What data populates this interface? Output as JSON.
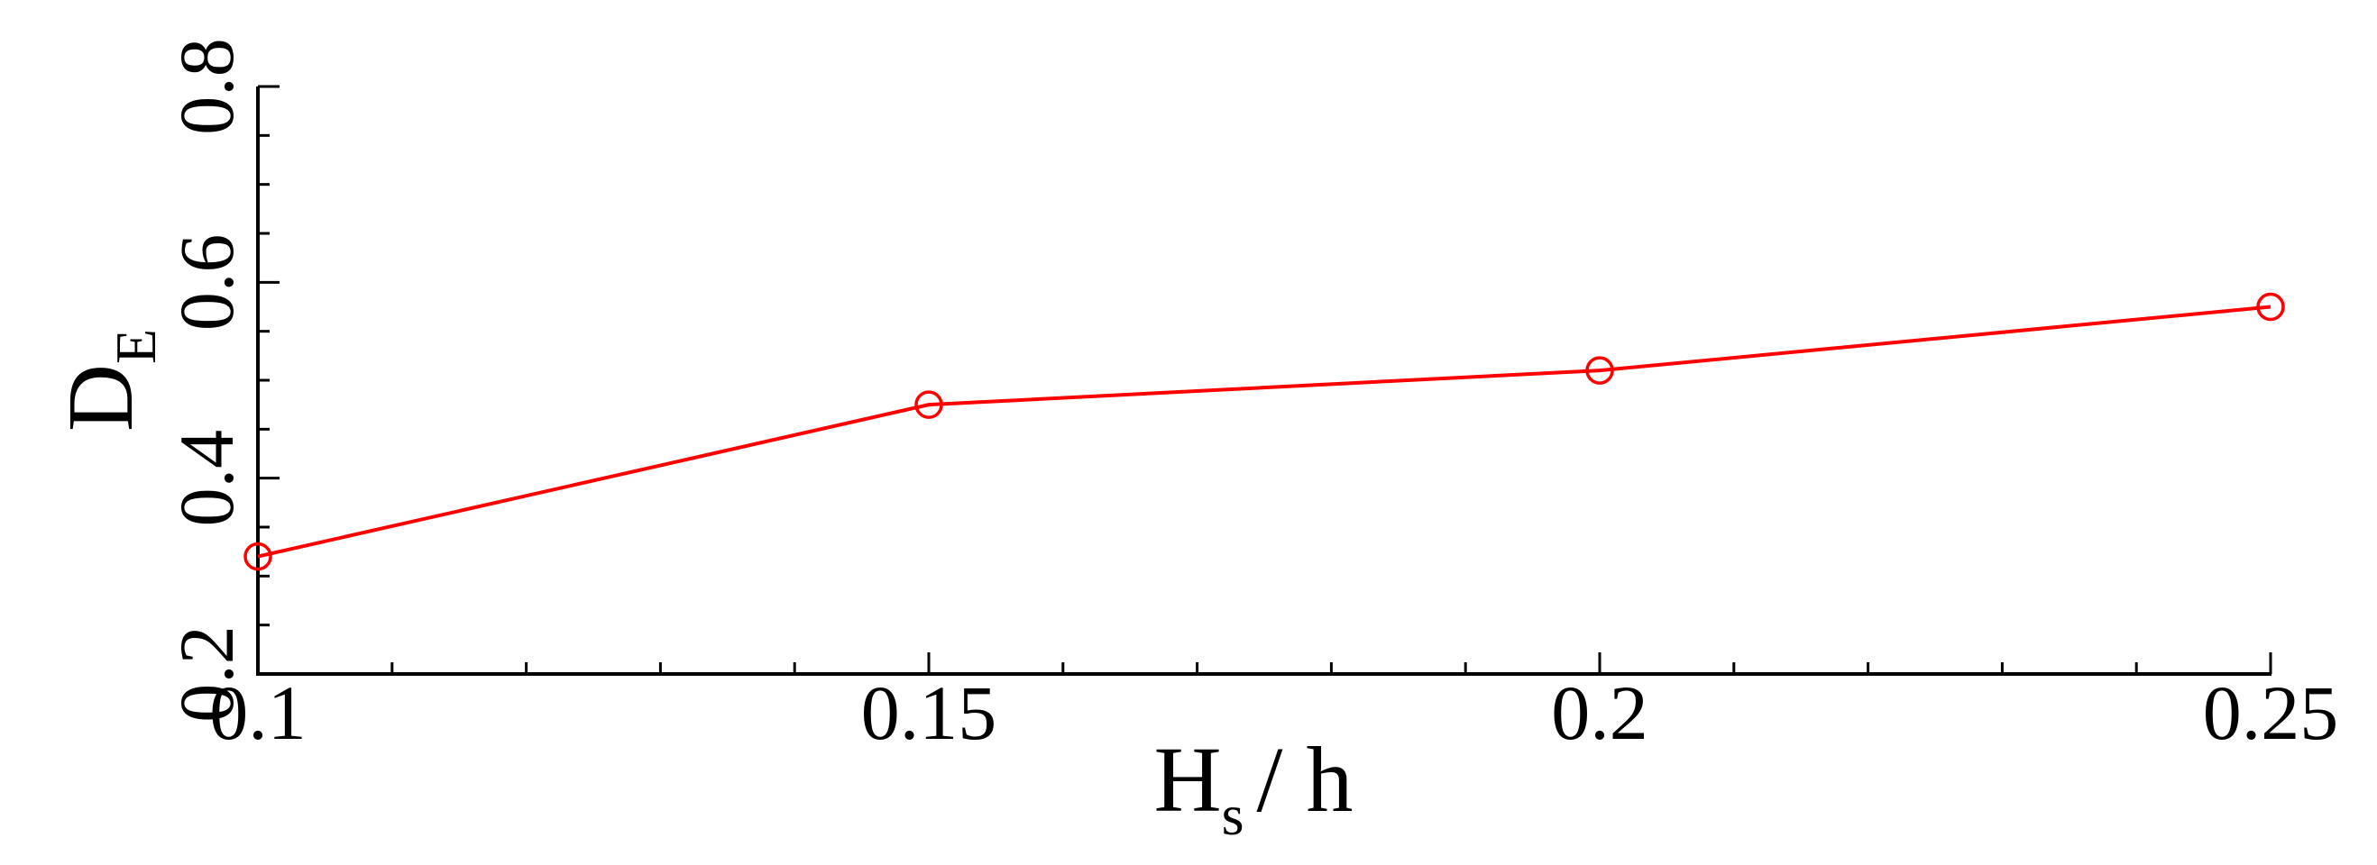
{
  "chart_data": {
    "type": "line",
    "xlabel": {
      "main": "H",
      "sub": "s",
      "rest": "/ h"
    },
    "ylabel": {
      "main": "D",
      "sub": "E"
    },
    "x": [
      0.1,
      0.15,
      0.2,
      0.25
    ],
    "series": [
      {
        "color": "#ff0000",
        "values": [
          0.32,
          0.475,
          0.51,
          0.575
        ]
      }
    ],
    "xlim": [
      0.1,
      0.25
    ],
    "ylim": [
      0.2,
      0.8
    ],
    "xticks": [
      0.1,
      0.15,
      0.2,
      0.25
    ],
    "yticks": [
      0.2,
      0.4,
      0.6,
      0.8
    ],
    "xminorticks": [
      0.11,
      0.12,
      0.13,
      0.14,
      0.16,
      0.17,
      0.18,
      0.19,
      0.21,
      0.22,
      0.23,
      0.24
    ],
    "yminorticks": [
      0.25,
      0.3,
      0.35,
      0.45,
      0.5,
      0.55,
      0.65,
      0.7,
      0.75
    ],
    "grid": false
  }
}
